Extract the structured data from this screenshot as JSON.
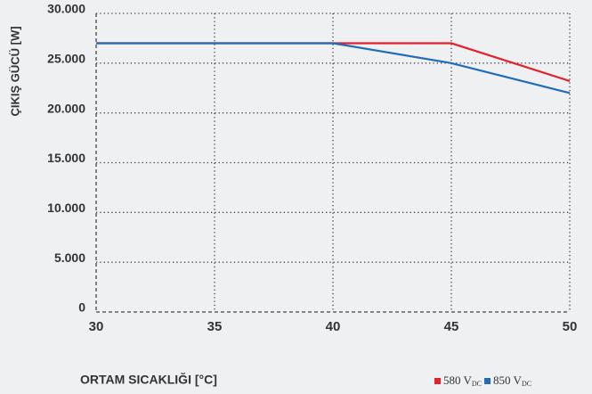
{
  "chart_data": {
    "type": "line",
    "x_label": "ORTAM SICAKLIĞI [°C]",
    "y_label": "ÇIKIŞ GÜCÜ [W]",
    "x": [
      30,
      40,
      45,
      50
    ],
    "series": [
      {
        "name": "580 VDC",
        "color": "#e3202c",
        "values": [
          27000,
          27000,
          27000,
          23200
        ]
      },
      {
        "name": "850 VDC",
        "color": "#1f6db5",
        "values": [
          27000,
          27000,
          25000,
          22000
        ]
      }
    ],
    "xlim": [
      30,
      50
    ],
    "xticks": [
      30,
      35,
      40,
      45,
      50
    ],
    "ylim": [
      0,
      30000
    ],
    "yticks": [
      {
        "value": 0,
        "label": "0"
      },
      {
        "value": 5000,
        "label": "5.000"
      },
      {
        "value": 10000,
        "label": "10.000"
      },
      {
        "value": 15000,
        "label": "15.000"
      },
      {
        "value": 20000,
        "label": "20.000"
      },
      {
        "value": 25000,
        "label": "25.000"
      },
      {
        "value": 30000,
        "label": "30.000"
      }
    ],
    "grid": true,
    "legend": "bottom-right"
  }
}
